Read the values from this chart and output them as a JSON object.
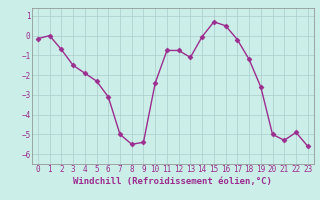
{
  "x": [
    0,
    1,
    2,
    3,
    4,
    5,
    6,
    7,
    8,
    9,
    10,
    11,
    12,
    13,
    14,
    15,
    16,
    17,
    18,
    19,
    20,
    21,
    22,
    23
  ],
  "y": [
    -0.15,
    0.0,
    -0.7,
    -1.5,
    -1.9,
    -2.3,
    -3.1,
    -5.0,
    -5.5,
    -5.4,
    -2.4,
    -0.75,
    -0.75,
    -1.1,
    -0.05,
    0.7,
    0.5,
    -0.2,
    -1.2,
    -2.6,
    -5.0,
    -5.3,
    -4.9,
    -5.6
  ],
  "line_color": "#9b2d8e",
  "marker": "D",
  "marker_size": 2.5,
  "bg_color": "#cceee8",
  "grid_color": "#aacccc",
  "xlabel": "Windchill (Refroidissement éolien,°C)",
  "xlabel_color": "#9b2d8e",
  "xlim": [
    -0.5,
    23.5
  ],
  "ylim": [
    -6.5,
    1.4
  ],
  "yticks": [
    -6,
    -5,
    -4,
    -3,
    -2,
    -1,
    0,
    1
  ],
  "xticks": [
    0,
    1,
    2,
    3,
    4,
    5,
    6,
    7,
    8,
    9,
    10,
    11,
    12,
    13,
    14,
    15,
    16,
    17,
    18,
    19,
    20,
    21,
    22,
    23
  ],
  "tick_label_size": 5.5,
  "xlabel_size": 6.5,
  "linewidth": 1.0
}
